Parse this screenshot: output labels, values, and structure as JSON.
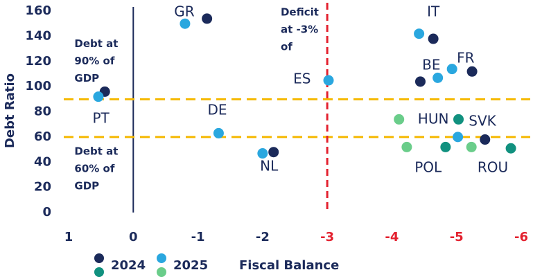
{
  "chart_data": {
    "type": "scatter",
    "xlabel": "Fiscal Balance",
    "ylabel": "Debt Ratio",
    "xlim": [
      1,
      -6
    ],
    "ylim": [
      0,
      160
    ],
    "xticks": [
      1,
      0,
      -1,
      -2,
      -3,
      -4,
      -5,
      -6
    ],
    "xtick_colors": [
      "#1b2a5a",
      "#1b2a5a",
      "#1b2a5a",
      "#1b2a5a",
      "#e3202e",
      "#e3202e",
      "#e3202e",
      "#e3202e"
    ],
    "yticks": [
      0,
      20,
      40,
      60,
      80,
      100,
      120,
      140,
      160
    ],
    "hlines": [
      90,
      60
    ],
    "hline_color": "#f5b800",
    "vline": -3,
    "vline_color": "#e3202e",
    "series": [
      {
        "name": "2024",
        "legend_colors": [
          "#1b2a5a",
          "#11917f"
        ],
        "x": [
          -1.14,
          0.44,
          -2.17,
          -4.64,
          -4.44,
          -5.24,
          -5.44,
          -5.03,
          -4.83,
          -5.84
        ],
        "values": [
          154,
          96,
          48,
          138,
          104,
          112,
          58,
          74,
          52,
          51
        ],
        "colors": [
          "#1b2a5a",
          "#1b2a5a",
          "#1b2a5a",
          "#1b2a5a",
          "#1b2a5a",
          "#1b2a5a",
          "#1b2a5a",
          "#11917f",
          "#11917f",
          "#11917f"
        ]
      },
      {
        "name": "2025",
        "legend_colors": [
          "#2aa7df",
          "#6acd8a"
        ],
        "x": [
          -0.8,
          0.54,
          -1.32,
          -2.0,
          -3.02,
          -4.42,
          -4.71,
          -4.93,
          -5.02,
          -4.11,
          -4.23,
          -5.23
        ],
        "values": [
          150,
          92,
          63,
          47,
          105,
          142,
          107,
          114,
          60,
          74,
          52,
          52
        ],
        "colors": [
          "#2aa7df",
          "#2aa7df",
          "#2aa7df",
          "#2aa7df",
          "#2aa7df",
          "#2aa7df",
          "#2aa7df",
          "#2aa7df",
          "#2aa7df",
          "#6acd8a",
          "#6acd8a",
          "#6acd8a"
        ]
      }
    ],
    "annotations": [
      {
        "text": "GR",
        "x": -0.79,
        "y": 158.8
      },
      {
        "text": "DE",
        "x": -1.3,
        "y": 80.8
      },
      {
        "text": "ES",
        "x": -2.61,
        "y": 105.5
      },
      {
        "text": "PT",
        "x": 0.5,
        "y": 74.2
      },
      {
        "text": "NL",
        "x": -2.1,
        "y": 36.3
      },
      {
        "text": "IT",
        "x": -4.64,
        "y": 158.8
      },
      {
        "text": "BE",
        "x": -4.61,
        "y": 116.5
      },
      {
        "text": "FR",
        "x": -5.14,
        "y": 122
      },
      {
        "text": "HUN",
        "x": -4.64,
        "y": 73.6
      },
      {
        "text": "SVK",
        "x": -5.4,
        "y": 72
      },
      {
        "text": "POL",
        "x": -4.56,
        "y": 35.2
      },
      {
        "text": "ROU",
        "x": -5.56,
        "y": 35.2
      }
    ],
    "notes": [
      {
        "lines": [
          "Debt at",
          "90% of",
          "GDP"
        ],
        "x": 0.91,
        "y": 134
      },
      {
        "lines": [
          "Debt at",
          "60% of",
          "GDP"
        ],
        "x": 0.91,
        "y": 48.4
      },
      {
        "lines": [
          "Deficit",
          "at -3%",
          "of"
        ],
        "x": -2.28,
        "y": 158.8
      }
    ]
  }
}
